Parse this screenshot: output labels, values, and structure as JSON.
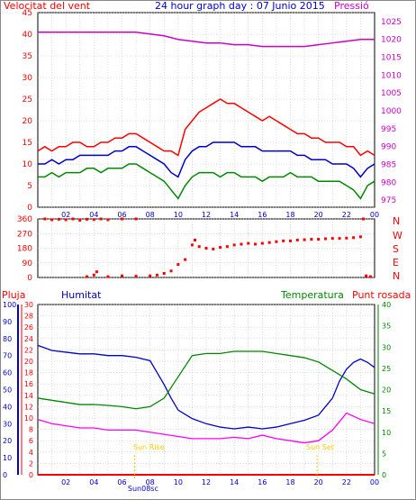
{
  "header": {
    "left_label": "Velocitat del vent",
    "title": "24 hour graph day : 07 Junio 2015",
    "right_label": "Pressió"
  },
  "colors": {
    "wind_max": "#ff0000",
    "wind_avg": "#0000cc",
    "wind_min": "#008800",
    "pressure": "#cc00cc",
    "direction": "#ff0000",
    "humidity": "#0000cc",
    "temperature": "#008800",
    "dewpoint": "#ff00ff",
    "rain": "#ff0000",
    "sun": "#ffcc00",
    "grid": "#bbbbbb"
  },
  "x_ticks": [
    "02",
    "04",
    "06",
    "08",
    "10",
    "12",
    "14",
    "16",
    "18",
    "20",
    "22",
    "00"
  ],
  "direction_labels": [
    "N",
    "W",
    "S",
    "E",
    "N"
  ],
  "lower_labels": {
    "rain": "Pluja",
    "humidity": "Humitat",
    "temperature": "Temperatura",
    "dewpoint": "Punt rosada"
  },
  "sun_labels": {
    "rise": "Sun Rise",
    "set": "Sun Set",
    "axis": "Sun08sc"
  },
  "chart_data": [
    {
      "type": "line",
      "title": "24 hour graph day : 07 Junio 2015",
      "x_unit": "hour",
      "xlim": [
        0,
        24
      ],
      "y_left_label": "Velocitat del vent",
      "y_left_ticks": [
        0,
        5,
        10,
        15,
        20,
        25,
        30,
        35,
        40,
        45
      ],
      "y_left_lim": [
        0,
        45
      ],
      "y_right_label": "Pressió",
      "y_right_ticks": [
        975,
        980,
        985,
        990,
        995,
        1000,
        1005,
        1010,
        1015,
        1020,
        1025
      ],
      "y_right_lim": [
        973,
        1027.5
      ],
      "series": [
        {
          "name": "wind_max",
          "axis": "left",
          "x": [
            0,
            0.5,
            1,
            1.5,
            2,
            2.5,
            3,
            3.5,
            4,
            4.5,
            5,
            5.5,
            6,
            6.5,
            7,
            7.5,
            8,
            8.5,
            9,
            9.5,
            10,
            10.5,
            11,
            11.5,
            12,
            12.5,
            13,
            13.5,
            14,
            14.5,
            15,
            15.5,
            16,
            16.5,
            17,
            17.5,
            18,
            18.5,
            19,
            19.5,
            20,
            20.5,
            21,
            21.5,
            22,
            22.5,
            23,
            23.5,
            24
          ],
          "y": [
            13,
            14,
            13,
            14,
            14,
            15,
            15,
            14,
            14,
            15,
            15,
            16,
            16,
            17,
            17,
            16,
            15,
            14,
            13,
            13,
            12,
            18,
            20,
            22,
            23,
            24,
            25,
            24,
            24,
            23,
            22,
            21,
            20,
            21,
            20,
            19,
            18,
            17,
            17,
            16,
            16,
            15,
            15,
            15,
            14,
            14,
            12,
            13,
            12
          ]
        },
        {
          "name": "wind_avg",
          "axis": "left",
          "x": [
            0,
            0.5,
            1,
            1.5,
            2,
            2.5,
            3,
            3.5,
            4,
            4.5,
            5,
            5.5,
            6,
            6.5,
            7,
            7.5,
            8,
            8.5,
            9,
            9.5,
            10,
            10.5,
            11,
            11.5,
            12,
            12.5,
            13,
            13.5,
            14,
            14.5,
            15,
            15.5,
            16,
            16.5,
            17,
            17.5,
            18,
            18.5,
            19,
            19.5,
            20,
            20.5,
            21,
            21.5,
            22,
            22.5,
            23,
            23.5,
            24
          ],
          "y": [
            10,
            10,
            11,
            10,
            11,
            11,
            12,
            12,
            12,
            12,
            12,
            13,
            13,
            14,
            14,
            13,
            12,
            11,
            10,
            8,
            7,
            11,
            13,
            14,
            14,
            15,
            15,
            15,
            15,
            14,
            14,
            14,
            13,
            13,
            13,
            13,
            13,
            12,
            12,
            11,
            11,
            11,
            10,
            10,
            10,
            9,
            7,
            9,
            10
          ]
        },
        {
          "name": "wind_min",
          "axis": "left",
          "x": [
            0,
            0.5,
            1,
            1.5,
            2,
            2.5,
            3,
            3.5,
            4,
            4.5,
            5,
            5.5,
            6,
            6.5,
            7,
            7.5,
            8,
            8.5,
            9,
            9.5,
            10,
            10.5,
            11,
            11.5,
            12,
            12.5,
            13,
            13.5,
            14,
            14.5,
            15,
            15.5,
            16,
            16.5,
            17,
            17.5,
            18,
            18.5,
            19,
            19.5,
            20,
            20.5,
            21,
            21.5,
            22,
            22.5,
            23,
            23.5,
            24
          ],
          "y": [
            7,
            7,
            8,
            7,
            8,
            8,
            8,
            9,
            9,
            8,
            9,
            9,
            9,
            10,
            10,
            9,
            8,
            7,
            6,
            4,
            2,
            5,
            7,
            8,
            8,
            8,
            7,
            8,
            8,
            7,
            7,
            7,
            6,
            7,
            7,
            7,
            8,
            7,
            7,
            7,
            6,
            6,
            6,
            6,
            5,
            4,
            2,
            5,
            6
          ]
        },
        {
          "name": "pressure",
          "axis": "right",
          "x": [
            0,
            1,
            2,
            3,
            4,
            5,
            6,
            7,
            8,
            9,
            10,
            11,
            12,
            13,
            14,
            15,
            16,
            17,
            18,
            19,
            20,
            21,
            22,
            23,
            24
          ],
          "y": [
            1022,
            1022,
            1022,
            1022,
            1022,
            1022,
            1022,
            1022,
            1021.5,
            1021,
            1020,
            1019.5,
            1019,
            1019,
            1018.5,
            1018.5,
            1018,
            1018,
            1018,
            1018,
            1018.5,
            1019,
            1019.5,
            1020,
            1020
          ]
        }
      ]
    },
    {
      "type": "scatter",
      "series_name": "wind_direction",
      "x_unit": "hour",
      "xlim": [
        0,
        24
      ],
      "y_ticks": [
        0,
        90,
        180,
        270,
        360
      ],
      "ylim": [
        0,
        360
      ],
      "points": [
        [
          0.5,
          360
        ],
        [
          1,
          355
        ],
        [
          1.5,
          358
        ],
        [
          2,
          355
        ],
        [
          2.5,
          360
        ],
        [
          3,
          352
        ],
        [
          3.5,
          358
        ],
        [
          4,
          356
        ],
        [
          4.5,
          360
        ],
        [
          5,
          355
        ],
        [
          6,
          360
        ],
        [
          7,
          360
        ],
        [
          3.5,
          5
        ],
        [
          4,
          15
        ],
        [
          4.2,
          35
        ],
        [
          5,
          5
        ],
        [
          6,
          10
        ],
        [
          7,
          8
        ],
        [
          8,
          10
        ],
        [
          8.5,
          15
        ],
        [
          9,
          25
        ],
        [
          9.5,
          40
        ],
        [
          10,
          80
        ],
        [
          10.5,
          110
        ],
        [
          11,
          200
        ],
        [
          11.2,
          230
        ],
        [
          11.5,
          190
        ],
        [
          12,
          180
        ],
        [
          12.5,
          175
        ],
        [
          13,
          185
        ],
        [
          13.5,
          190
        ],
        [
          14,
          200
        ],
        [
          14.5,
          205
        ],
        [
          15,
          210
        ],
        [
          15.5,
          205
        ],
        [
          16,
          210
        ],
        [
          16.5,
          215
        ],
        [
          17,
          220
        ],
        [
          17.5,
          225
        ],
        [
          18,
          225
        ],
        [
          18.5,
          230
        ],
        [
          19,
          232
        ],
        [
          19.5,
          235
        ],
        [
          20,
          235
        ],
        [
          20.5,
          238
        ],
        [
          21,
          240
        ],
        [
          21.5,
          240
        ],
        [
          22,
          242
        ],
        [
          22.5,
          245
        ],
        [
          23,
          250
        ],
        [
          23.2,
          360
        ],
        [
          23.4,
          10
        ],
        [
          23.7,
          5
        ]
      ]
    },
    {
      "type": "line",
      "x_unit": "hour",
      "xlim": [
        0,
        24
      ],
      "y_left_ticks": [
        0,
        10,
        20,
        30,
        40,
        50,
        60,
        70,
        80,
        90,
        100
      ],
      "y_left_lim": [
        0,
        100
      ],
      "y_rain_ticks": [
        0,
        2,
        4,
        6,
        8,
        10,
        12,
        14,
        16,
        18,
        20,
        22,
        24,
        26,
        28,
        30
      ],
      "y_right_ticks": [
        0,
        5,
        10,
        15,
        20,
        25,
        30,
        35,
        40
      ],
      "y_right_lim": [
        0,
        40
      ],
      "series": [
        {
          "name": "humitat",
          "axis": "humidity",
          "x": [
            0,
            1,
            2,
            3,
            4,
            5,
            6,
            7,
            8,
            8.5,
            9,
            9.5,
            10,
            11,
            12,
            13,
            14,
            15,
            16,
            17,
            18,
            19,
            20,
            21,
            21.5,
            22,
            22.5,
            23,
            23.5,
            24
          ],
          "y": [
            76,
            73,
            72,
            71,
            71,
            70,
            70,
            69,
            67,
            60,
            53,
            45,
            38,
            33,
            30,
            28,
            27,
            28,
            27,
            28,
            30,
            32,
            35,
            45,
            55,
            62,
            66,
            68,
            66,
            63
          ]
        },
        {
          "name": "temperatura",
          "axis": "temperature",
          "x": [
            0,
            1,
            2,
            3,
            4,
            5,
            6,
            7,
            8,
            9,
            10,
            11,
            12,
            13,
            14,
            15,
            16,
            17,
            18,
            19,
            20,
            21,
            22,
            23,
            24
          ],
          "y": [
            18,
            17.5,
            17,
            16.5,
            16.5,
            16.3,
            16,
            15.5,
            16,
            18,
            23,
            28,
            28.5,
            28.5,
            29,
            29,
            29,
            28.5,
            28,
            27.5,
            26.5,
            24.5,
            22.5,
            20,
            19
          ]
        },
        {
          "name": "punt_rosada",
          "axis": "temperature",
          "x": [
            0,
            1,
            2,
            3,
            4,
            5,
            6,
            7,
            8,
            9,
            10,
            11,
            12,
            13,
            14,
            15,
            16,
            17,
            18,
            19,
            20,
            21,
            22,
            23,
            24
          ],
          "y": [
            13,
            12,
            11.5,
            11,
            11,
            10.5,
            10.5,
            10.5,
            10,
            9.5,
            9,
            8.5,
            8.5,
            8.5,
            8.8,
            8.5,
            9.3,
            8.5,
            8,
            7.5,
            8,
            10.5,
            14.5,
            13,
            12
          ]
        },
        {
          "name": "pluja",
          "axis": "rain",
          "x": [
            0,
            24
          ],
          "y": [
            0,
            0
          ]
        }
      ],
      "sun_rise_hour": 6.9,
      "sun_set_hour": 19.9
    }
  ]
}
